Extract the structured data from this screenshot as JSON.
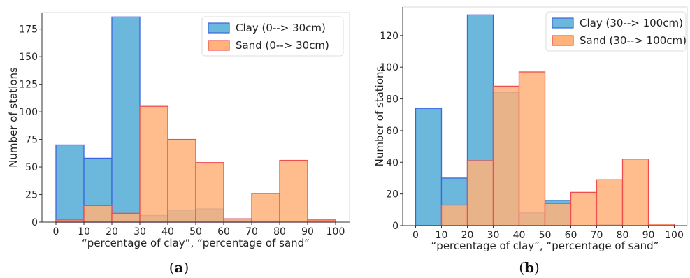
{
  "chart_data": [
    {
      "type": "bar",
      "caption": "(a)",
      "xlabel": "“percentage of clay”, “percentage of sand”",
      "ylabel": "Number of stations",
      "xlim": [
        -5,
        105
      ],
      "ylim": [
        0,
        190
      ],
      "xticks": [
        "0",
        "10",
        "20",
        "30",
        "40",
        "50",
        "60",
        "70",
        "80",
        "90",
        "100"
      ],
      "yticks": [
        "0",
        "25",
        "50",
        "75",
        "100",
        "125",
        "150",
        "175"
      ],
      "bin_edges": [
        0,
        10,
        20,
        30,
        40,
        50,
        60,
        70,
        80,
        90,
        100
      ],
      "legend": "top-right",
      "series": [
        {
          "name": "Clay (0--> 30cm)",
          "color": "#6cb8dc",
          "edge": "#3b64e0",
          "values": [
            70,
            58,
            186,
            6,
            11,
            12,
            3,
            1,
            0,
            0
          ]
        },
        {
          "name": "Sand (0--> 30cm)",
          "color": "#ffb27a",
          "edge": "#f04e4e",
          "values": [
            2,
            15,
            8,
            105,
            75,
            54,
            3,
            26,
            56,
            2
          ]
        }
      ]
    },
    {
      "type": "bar",
      "caption": "(b)",
      "xlabel": "“percentage of clay”, “percentage of sand”",
      "ylabel": "Number of stations",
      "xlim": [
        -5,
        105
      ],
      "ylim": [
        0,
        138
      ],
      "xticks": [
        "0",
        "10",
        "20",
        "30",
        "40",
        "50",
        "60",
        "70",
        "80",
        "90",
        "100"
      ],
      "yticks": [
        "0",
        "20",
        "40",
        "60",
        "80",
        "100",
        "120"
      ],
      "bin_edges": [
        0,
        10,
        20,
        30,
        40,
        50,
        60,
        70,
        80,
        90,
        100
      ],
      "legend": "top-right",
      "series": [
        {
          "name": "Clay (30--> 100cm)",
          "color": "#6cb8dc",
          "edge": "#3b64e0",
          "values": [
            74,
            30,
            133,
            84,
            8,
            16,
            0,
            1,
            0,
            0
          ]
        },
        {
          "name": "Sand (30--> 100cm)",
          "color": "#ffb27a",
          "edge": "#f04e4e",
          "values": [
            0,
            13,
            41,
            88,
            97,
            14,
            21,
            29,
            42,
            1
          ]
        }
      ]
    }
  ]
}
